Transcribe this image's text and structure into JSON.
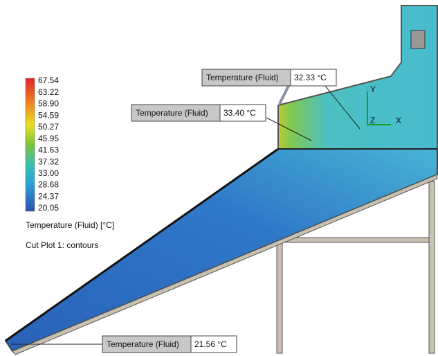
{
  "legend": {
    "ticks": [
      "67.54",
      "63.22",
      "58.90",
      "54.59",
      "50.27",
      "45.95",
      "41.63",
      "37.32",
      "33.00",
      "28.68",
      "24.37",
      "20.05"
    ],
    "title": "Temperature (Fluid) [°C]",
    "caption": "Cut Plot 1: contours"
  },
  "probes": [
    {
      "label": "Temperature (Fluid)",
      "value": "32.33 °C"
    },
    {
      "label": "Temperature (Fluid)",
      "value": "33.40 °C"
    },
    {
      "label": "Temperature (Fluid)",
      "value": "21.56 °C"
    }
  ],
  "triad": {
    "y": "Y",
    "z": "Z",
    "x": "X"
  }
}
